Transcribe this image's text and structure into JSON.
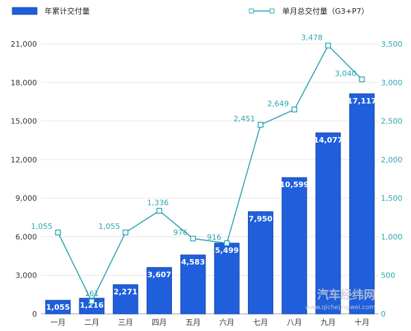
{
  "chart_data": {
    "type": "bar+line",
    "categories": [
      "一月",
      "二月",
      "三月",
      "四月",
      "五月",
      "六月",
      "七月",
      "八月",
      "九月",
      "十月"
    ],
    "series": [
      {
        "name": "年累计交付量",
        "type": "bar",
        "axis": "left",
        "values": [
          1055,
          1216,
          2271,
          3607,
          4583,
          5499,
          7950,
          10599,
          14077,
          17117
        ]
      },
      {
        "name": "单月总交付量（G3+P7）",
        "type": "line",
        "axis": "right",
        "values": [
          1055,
          161,
          1055,
          1336,
          976,
          916,
          2451,
          2649,
          3478,
          3040
        ]
      }
    ],
    "left_axis": {
      "range": [
        0,
        21000
      ],
      "ticks": [
        "0",
        "3,000",
        "6,000",
        "9,000",
        "12,000",
        "15,000",
        "18,000",
        "21,000"
      ]
    },
    "right_axis": {
      "range": [
        0,
        3500
      ],
      "ticks": [
        "0",
        "500",
        "1,000",
        "1,500",
        "2,000",
        "2,500",
        "3,000",
        "3,500"
      ]
    },
    "grid": true,
    "legend_placement": "top",
    "colors": {
      "bar": "#1f5fdc",
      "bar_border": "#1746a8",
      "line": "#2aa3b3",
      "grid": "#e6e6e6"
    }
  },
  "watermark": {
    "title": "汽车经纬网",
    "url": "www.qichejingwei.com"
  }
}
